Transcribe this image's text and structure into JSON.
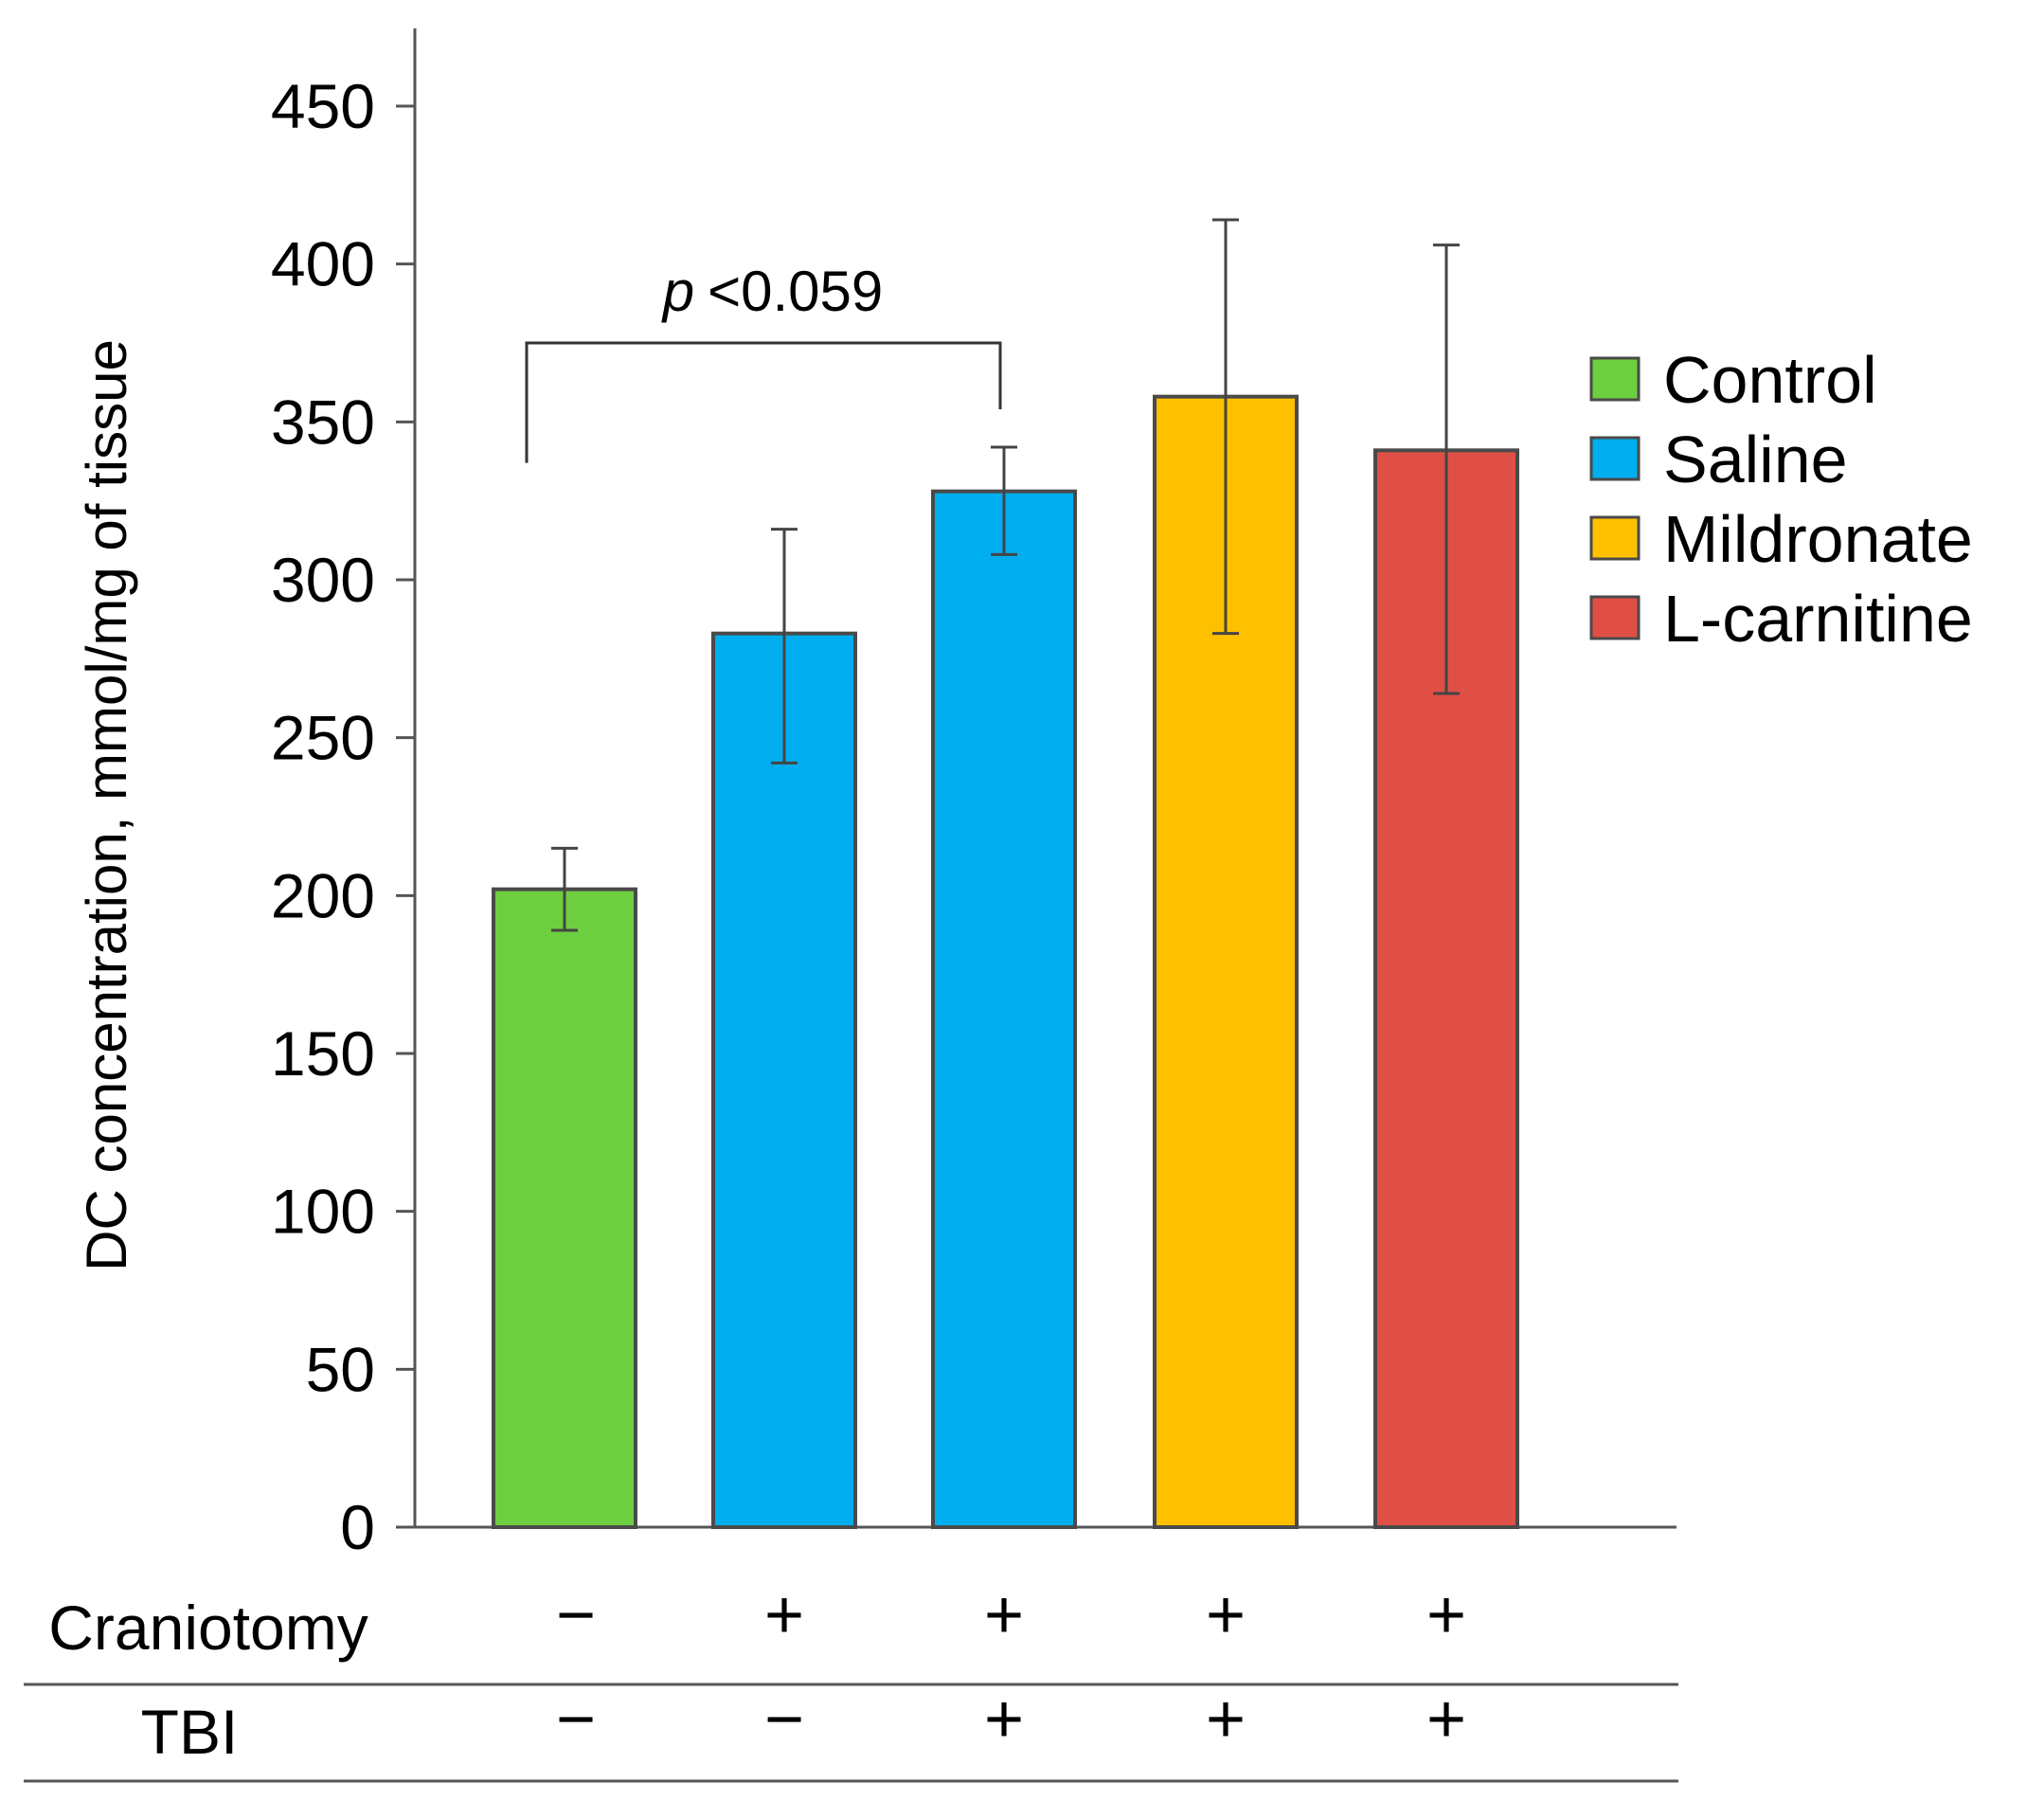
{
  "chart_data": {
    "type": "bar",
    "title": "",
    "xlabel": "",
    "ylabel": "DC concentration, mmol/mg of tissue",
    "ylim": [
      0,
      470
    ],
    "yticks": [
      0,
      50,
      100,
      150,
      200,
      250,
      300,
      350,
      400,
      450
    ],
    "grid": false,
    "bars": [
      {
        "group": "Control",
        "value": 202,
        "error_low": 189,
        "error_high": 215
      },
      {
        "group": "Saline",
        "value": 283,
        "error_low": 242,
        "error_high": 316
      },
      {
        "group": "Saline",
        "value": 328,
        "error_low": 308,
        "error_high": 342
      },
      {
        "group": "Mildronate",
        "value": 358,
        "error_low": 283,
        "error_high": 414
      },
      {
        "group": "L-carnitine",
        "value": 341,
        "error_low": 264,
        "error_high": 406
      }
    ],
    "legend": [
      {
        "name": "Control",
        "color": "#6dcf3f"
      },
      {
        "name": "Saline",
        "color": "#00aeef"
      },
      {
        "name": "Mildronate",
        "color": "#ffc000"
      },
      {
        "name": "L-carnitine",
        "color": "#e04f45"
      }
    ],
    "legend_position": "right",
    "annotation": {
      "p_label": "p",
      "p_value": "<0.059",
      "from_bar": 0,
      "to_bar": 2,
      "bracket_level": 375
    },
    "conditions": [
      {
        "label": "Craniotomy",
        "values": [
          "−",
          "+",
          "+",
          "+",
          "+"
        ]
      },
      {
        "label": "TBI",
        "values": [
          "−",
          "−",
          "+",
          "+",
          "+"
        ]
      }
    ]
  }
}
